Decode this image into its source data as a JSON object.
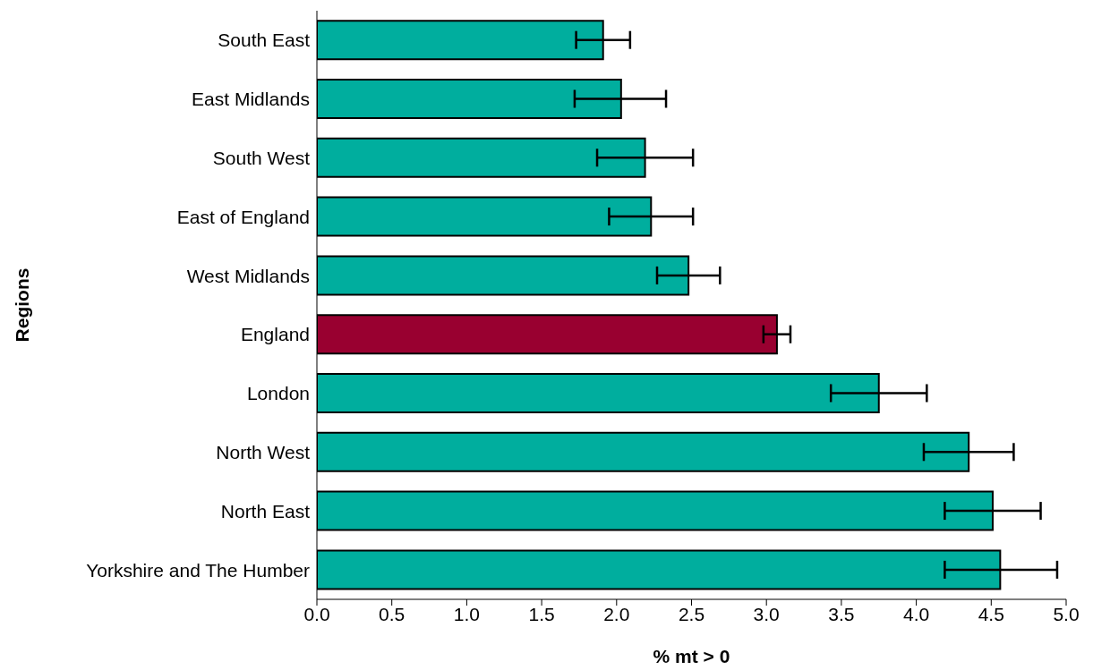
{
  "chart_data": {
    "type": "bar",
    "orientation": "horizontal",
    "xlabel": "% mt > 0",
    "ylabel": "Regions",
    "categories": [
      "South East",
      "East Midlands",
      "South West",
      "East of England",
      "West Midlands",
      "England",
      "London",
      "North West",
      "North East",
      "Yorkshire and The Humber"
    ],
    "values": [
      1.91,
      2.03,
      2.19,
      2.23,
      2.48,
      3.07,
      3.75,
      4.35,
      4.51,
      4.56
    ],
    "errors": [
      [
        1.73,
        2.09
      ],
      [
        1.72,
        2.33
      ],
      [
        1.87,
        2.51
      ],
      [
        1.95,
        2.51
      ],
      [
        2.27,
        2.69
      ],
      [
        2.98,
        3.16
      ],
      [
        3.43,
        4.07
      ],
      [
        4.05,
        4.65
      ],
      [
        4.19,
        4.83
      ],
      [
        4.19,
        4.94
      ]
    ],
    "colors": [
      "#00ae9e",
      "#00ae9e",
      "#00ae9e",
      "#00ae9e",
      "#00ae9e",
      "#990030",
      "#00ae9e",
      "#00ae9e",
      "#00ae9e",
      "#00ae9e"
    ],
    "xlim": [
      0,
      5
    ],
    "xticks": [
      {
        "value": 0,
        "label": "0.0"
      },
      {
        "value": 0.5,
        "label": "0.5"
      },
      {
        "value": 1,
        "label": "1.0"
      },
      {
        "value": 1.5,
        "label": "1.5"
      },
      {
        "value": 2,
        "label": "2.0"
      },
      {
        "value": 2.5,
        "label": "2.5"
      },
      {
        "value": 3,
        "label": "3.0"
      },
      {
        "value": 3.5,
        "label": "3.5"
      },
      {
        "value": 4,
        "label": "4.0"
      },
      {
        "value": 4.5,
        "label": "4.5"
      },
      {
        "value": 5,
        "label": "5.0"
      }
    ],
    "grid": false
  }
}
